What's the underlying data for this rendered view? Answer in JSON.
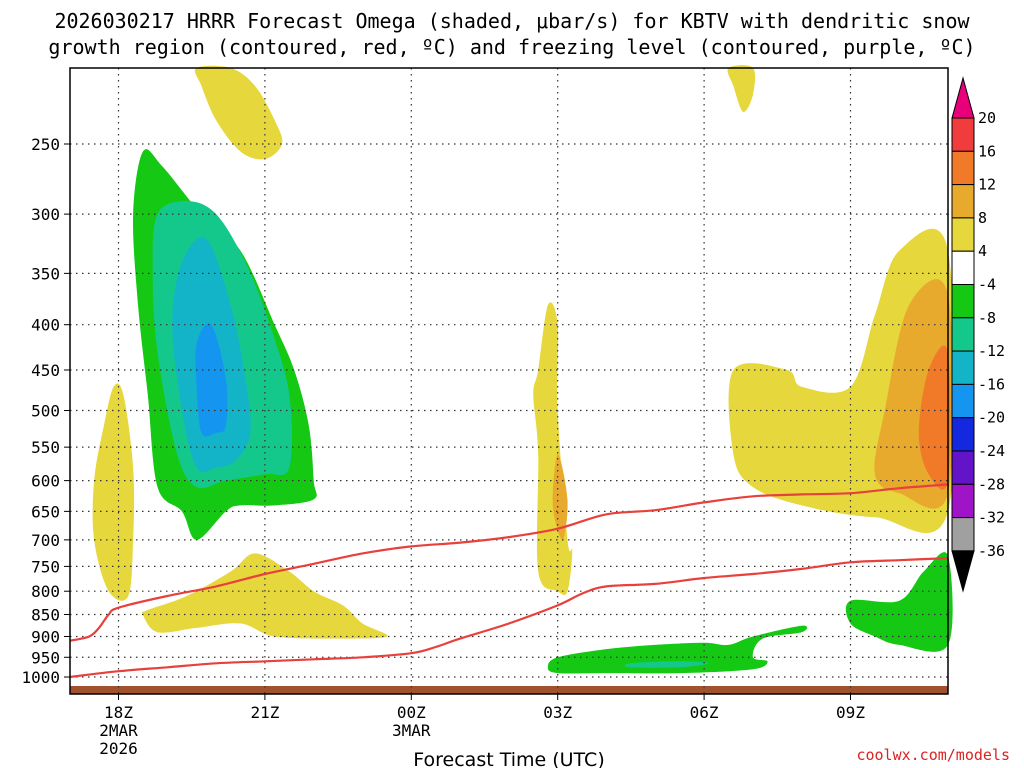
{
  "title": {
    "line1": "2026030217 HRRR Forecast Omega (shaded, μbar/s) for KBTV with dendritic snow",
    "line2": "growth region (contoured, red, ºC) and freezing level (contoured, purple, ºC)"
  },
  "credit": "coolwx.com/models",
  "chart_data": {
    "type": "heatmap",
    "title": "2026030217 HRRR Forecast Omega (shaded, μbar/s) for KBTV with dendritic snow growth region (contoured, red, ºC) and freezing level (contoured, purple, ºC)",
    "xlabel": "Forecast Time (UTC)",
    "ylabel": "",
    "x_ticks": [
      {
        "hours": 1,
        "label": "18Z",
        "sub1": "2MAR",
        "sub2": "2026"
      },
      {
        "hours": 4,
        "label": "21Z",
        "sub1": "",
        "sub2": ""
      },
      {
        "hours": 7,
        "label": "00Z",
        "sub1": "3MAR",
        "sub2": ""
      },
      {
        "hours": 10,
        "label": "03Z",
        "sub1": "",
        "sub2": ""
      },
      {
        "hours": 13,
        "label": "06Z",
        "sub1": "",
        "sub2": ""
      },
      {
        "hours": 16,
        "label": "09Z",
        "sub1": "",
        "sub2": ""
      }
    ],
    "xlim_hours": [
      0,
      18
    ],
    "y_axis": "pressure (mb), log scale, inverted",
    "ylim": [
      1050,
      200
    ],
    "y_ticks": [
      250,
      300,
      350,
      400,
      450,
      500,
      550,
      600,
      650,
      700,
      750,
      800,
      850,
      900,
      950,
      1000
    ],
    "grid": true,
    "colorbar": {
      "labels": [
        "20",
        "16",
        "12",
        "8",
        "4",
        "-4",
        "-8",
        "-12",
        "-16",
        "-20",
        "-24",
        "-28",
        "-32",
        "-36"
      ],
      "colors": [
        "#e8007a",
        "#f03c3c",
        "#f07a28",
        "#e8aa2c",
        "#e6d83c",
        "#ffffff",
        "#14c814",
        "#14c88c",
        "#14b4c8",
        "#1496f0",
        "#1428e0",
        "#6414c8",
        "#a014c8",
        "#a0a0a0",
        "#000000"
      ]
    },
    "dgz_contours": [
      {
        "name": "",
        "points": [
          [
            0,
            910
          ],
          [
            0.4,
            900
          ],
          [
            0.6,
            880
          ],
          [
            0.8,
            850
          ],
          [
            1,
            835
          ],
          [
            2,
            810
          ],
          [
            3,
            790
          ],
          [
            4,
            765
          ],
          [
            5,
            745
          ],
          [
            6,
            725
          ],
          [
            7,
            712
          ],
          [
            8,
            705
          ],
          [
            9,
            695
          ],
          [
            10,
            680
          ],
          [
            11,
            655
          ],
          [
            12,
            648
          ],
          [
            13,
            635
          ],
          [
            14,
            625
          ],
          [
            15,
            622
          ],
          [
            16,
            620
          ],
          [
            17,
            612
          ],
          [
            18,
            606
          ]
        ]
      },
      {
        "name": "",
        "points": [
          [
            0,
            1000
          ],
          [
            1,
            985
          ],
          [
            2,
            975
          ],
          [
            3,
            965
          ],
          [
            4,
            960
          ],
          [
            5,
            955
          ],
          [
            6,
            950
          ],
          [
            7,
            940
          ],
          [
            7.5,
            925
          ],
          [
            8,
            905
          ],
          [
            9,
            870
          ],
          [
            10,
            830
          ],
          [
            10.5,
            805
          ],
          [
            11,
            790
          ],
          [
            12,
            785
          ],
          [
            13,
            773
          ],
          [
            14,
            765
          ],
          [
            15,
            755
          ],
          [
            16,
            742
          ],
          [
            17,
            738
          ],
          [
            18,
            734
          ]
        ]
      }
    ],
    "shaded_regions": [
      {
        "value": "4 to 8",
        "color": "#e6d83c",
        "points": [
          [
            2.6,
            200
          ],
          [
            3.3,
            200
          ],
          [
            3.8,
            215
          ],
          [
            4.2,
            235
          ],
          [
            4.35,
            250
          ],
          [
            4.0,
            260
          ],
          [
            3.5,
            255
          ],
          [
            3.0,
            235
          ],
          [
            2.7,
            215
          ]
        ]
      },
      {
        "value": "4 to 8",
        "color": "#e6d83c",
        "points": [
          [
            13.5,
            200
          ],
          [
            14,
            200
          ],
          [
            14,
            220
          ],
          [
            13.8,
            230
          ],
          [
            13.6,
            215
          ]
        ]
      },
      {
        "value": "4 to 8",
        "color": "#e6d83c",
        "points": [
          [
            0.9,
            470
          ],
          [
            1.1,
            480
          ],
          [
            1.3,
            580
          ],
          [
            1.3,
            700
          ],
          [
            1.2,
            810
          ],
          [
            0.8,
            800
          ],
          [
            0.5,
            700
          ],
          [
            0.5,
            600
          ],
          [
            0.7,
            520
          ]
        ]
      },
      {
        "value": "4 to 8",
        "color": "#e6d83c",
        "points": [
          [
            1.6,
            840
          ],
          [
            2.4,
            810
          ],
          [
            3.3,
            760
          ],
          [
            3.8,
            725
          ],
          [
            4.5,
            760
          ],
          [
            5,
            800
          ],
          [
            5.6,
            830
          ],
          [
            6,
            870
          ],
          [
            6.5,
            900
          ],
          [
            5.5,
            905
          ],
          [
            4.2,
            900
          ],
          [
            3.5,
            870
          ],
          [
            2.6,
            880
          ],
          [
            1.8,
            890
          ],
          [
            1.5,
            850
          ]
        ]
      },
      {
        "value": "4 to 8",
        "color": "#e6d83c",
        "points": [
          [
            9.8,
            380
          ],
          [
            10,
            400
          ],
          [
            10,
            500
          ],
          [
            10.2,
            700
          ],
          [
            10.3,
            720
          ],
          [
            10.2,
            800
          ],
          [
            10.0,
            800
          ],
          [
            9.6,
            760
          ],
          [
            9.6,
            560
          ],
          [
            9.5,
            480
          ],
          [
            9.6,
            450
          ]
        ]
      },
      {
        "value": "4 to 8",
        "color": "#e6d83c",
        "points": [
          [
            13.6,
            450
          ],
          [
            14.7,
            450
          ],
          [
            15,
            470
          ],
          [
            16,
            470
          ],
          [
            16.5,
            390
          ],
          [
            17,
            330
          ],
          [
            18,
            330
          ],
          [
            18,
            650
          ],
          [
            16.5,
            660
          ],
          [
            15,
            640
          ],
          [
            14,
            610
          ],
          [
            13.6,
            560
          ]
        ]
      },
      {
        "value": "8 to 12",
        "color": "#e8aa2c",
        "points": [
          [
            10,
            560
          ],
          [
            10.2,
            630
          ],
          [
            10.1,
            700
          ],
          [
            9.9,
            640
          ]
        ]
      },
      {
        "value": "8 to 12",
        "color": "#e8aa2c",
        "points": [
          [
            17.2,
            380
          ],
          [
            18,
            370
          ],
          [
            18,
            620
          ],
          [
            17,
            620
          ],
          [
            16.5,
            590
          ],
          [
            16.7,
            500
          ]
        ]
      },
      {
        "value": "12 to 16",
        "color": "#f07a28",
        "points": [
          [
            17.6,
            450
          ],
          [
            18,
            430
          ],
          [
            18,
            600
          ],
          [
            17.6,
            590
          ],
          [
            17.4,
            530
          ]
        ]
      },
      {
        "value": "-4 to -8",
        "color": "#14c814",
        "points": [
          [
            1.5,
            255
          ],
          [
            1.9,
            265
          ],
          [
            2.7,
            300
          ],
          [
            3.5,
            330
          ],
          [
            4.2,
            400
          ],
          [
            4.6,
            450
          ],
          [
            4.9,
            520
          ],
          [
            5.0,
            600
          ],
          [
            5.0,
            630
          ],
          [
            4.2,
            640
          ],
          [
            3.5,
            640
          ],
          [
            3.2,
            650
          ],
          [
            2.6,
            700
          ],
          [
            2.3,
            650
          ],
          [
            1.8,
            610
          ],
          [
            1.6,
            480
          ],
          [
            1.4,
            380
          ],
          [
            1.3,
            300
          ]
        ]
      },
      {
        "value": "-4 to -8",
        "color": "#14c814",
        "points": [
          [
            10,
            950
          ],
          [
            11,
            930
          ],
          [
            12,
            920
          ],
          [
            13,
            915
          ],
          [
            13.5,
            920
          ],
          [
            14,
            900
          ],
          [
            15,
            875
          ],
          [
            15,
            890
          ],
          [
            14.2,
            905
          ],
          [
            14,
            950
          ],
          [
            14.3,
            960
          ],
          [
            14,
            980
          ],
          [
            12.5,
            990
          ],
          [
            11,
            990
          ],
          [
            10,
            990
          ],
          [
            9.8,
            975
          ]
        ]
      },
      {
        "value": "-4 to -8",
        "color": "#14c814",
        "points": [
          [
            17.5,
            760
          ],
          [
            18,
            730
          ],
          [
            18,
            920
          ],
          [
            17,
            920
          ],
          [
            16.5,
            900
          ],
          [
            16,
            870
          ],
          [
            16,
            820
          ],
          [
            17,
            820
          ]
        ]
      },
      {
        "value": "-8 to -12",
        "color": "#14c88c",
        "points": [
          [
            1.8,
            300
          ],
          [
            2.4,
            290
          ],
          [
            3.0,
            300
          ],
          [
            3.6,
            340
          ],
          [
            4.1,
            400
          ],
          [
            4.5,
            480
          ],
          [
            4.5,
            580
          ],
          [
            4.0,
            590
          ],
          [
            3.2,
            600
          ],
          [
            2.6,
            610
          ],
          [
            2.2,
            560
          ],
          [
            1.8,
            430
          ],
          [
            1.7,
            350
          ]
        ]
      },
      {
        "value": "-8 to -12",
        "color": "#14c88c",
        "points": [
          [
            11.5,
            965
          ],
          [
            12.5,
            960
          ],
          [
            13.1,
            965
          ],
          [
            12.5,
            975
          ],
          [
            11.5,
            975
          ]
        ]
      },
      {
        "value": "-12 to -16",
        "color": "#14b4c8",
        "points": [
          [
            2.3,
            340
          ],
          [
            2.8,
            320
          ],
          [
            3.3,
            380
          ],
          [
            3.6,
            460
          ],
          [
            3.7,
            530
          ],
          [
            3.4,
            570
          ],
          [
            3.0,
            580
          ],
          [
            2.6,
            580
          ],
          [
            2.3,
            500
          ],
          [
            2.1,
            400
          ]
        ]
      },
      {
        "value": "-16 to -20",
        "color": "#1496f0",
        "points": [
          [
            2.6,
            420
          ],
          [
            2.9,
            400
          ],
          [
            3.2,
            460
          ],
          [
            3.2,
            520
          ],
          [
            3.0,
            530
          ],
          [
            2.7,
            530
          ],
          [
            2.6,
            470
          ]
        ]
      }
    ]
  }
}
